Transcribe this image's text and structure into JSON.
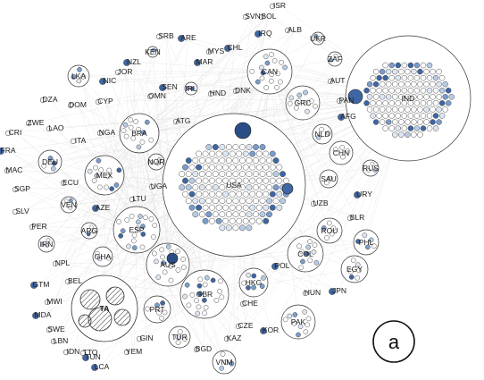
{
  "panel_label": "a",
  "colors": {
    "node_white": "#ffffff",
    "node_pale": "#dde7f3",
    "node_light": "#b6cbe4",
    "node_mid": "#7a9ccb",
    "node_dark": "#3e66a3",
    "node_darkest": "#2a4d85",
    "stroke": "#333333",
    "edge": "#e2e2e2"
  },
  "nodes": [
    {
      "label": "SVN"
    },
    {
      "label": "BOL"
    },
    {
      "label": "ISR"
    },
    {
      "label": "IRQ"
    },
    {
      "label": "ALB"
    },
    {
      "label": "SRB"
    },
    {
      "label": "ARE"
    },
    {
      "label": "UKR"
    },
    {
      "label": "KEN"
    },
    {
      "label": "MYS"
    },
    {
      "label": "CHL"
    },
    {
      "label": "NZL"
    },
    {
      "label": "MAR"
    },
    {
      "label": "ZAF"
    },
    {
      "label": "CAN"
    },
    {
      "label": "AUT"
    },
    {
      "label": "LKA"
    },
    {
      "label": "NIC"
    },
    {
      "label": "JOR"
    },
    {
      "label": "PAN"
    },
    {
      "label": "DZA"
    },
    {
      "label": "SEN"
    },
    {
      "label": "IRL"
    },
    {
      "label": "HND"
    },
    {
      "label": "DNK"
    },
    {
      "label": "OMN"
    },
    {
      "label": "DOM"
    },
    {
      "label": "CYP"
    },
    {
      "label": "GRC"
    },
    {
      "label": "AFG"
    },
    {
      "label": "IND"
    },
    {
      "label": "ZWE"
    },
    {
      "label": "LAO"
    },
    {
      "label": "CRI"
    },
    {
      "label": "BRA"
    },
    {
      "label": "ATG"
    },
    {
      "label": "NGA"
    },
    {
      "label": "NLD"
    },
    {
      "label": "ITA"
    },
    {
      "label": "FRA"
    },
    {
      "label": "CHN"
    },
    {
      "label": "DEU"
    },
    {
      "label": "NOR"
    },
    {
      "label": "MAC"
    },
    {
      "label": "MEX"
    },
    {
      "label": "RUS"
    },
    {
      "label": "USA"
    },
    {
      "label": "SAU"
    },
    {
      "label": "ECU"
    },
    {
      "label": "SGP"
    },
    {
      "label": "UGA"
    },
    {
      "label": "URY"
    },
    {
      "label": "LTU"
    },
    {
      "label": "UZB"
    },
    {
      "label": "SLV"
    },
    {
      "label": "VEN"
    },
    {
      "label": "AZE"
    },
    {
      "label": "BLR"
    },
    {
      "label": "PER"
    },
    {
      "label": "ARG"
    },
    {
      "label": "ESP"
    },
    {
      "label": "ROU"
    },
    {
      "label": "IRN"
    },
    {
      "label": "PHL"
    },
    {
      "label": "GHA"
    },
    {
      "label": "COL"
    },
    {
      "label": "NPL"
    },
    {
      "label": "AUS"
    },
    {
      "label": "EGY"
    },
    {
      "label": "POL"
    },
    {
      "label": "BEL"
    },
    {
      "label": "HKG"
    },
    {
      "label": "GTM"
    },
    {
      "label": "GBR"
    },
    {
      "label": "JPN"
    },
    {
      "label": "HUN"
    },
    {
      "label": "MWI"
    },
    {
      "label": "TA"
    },
    {
      "label": "CHE"
    },
    {
      "label": "PRT"
    },
    {
      "label": "MDA"
    },
    {
      "label": "PAK"
    },
    {
      "label": "SWE"
    },
    {
      "label": "CZE"
    },
    {
      "label": "KOR"
    },
    {
      "label": "LBN"
    },
    {
      "label": "GIN"
    },
    {
      "label": "TUR"
    },
    {
      "label": "IDN"
    },
    {
      "label": "TTO"
    },
    {
      "label": "YEM"
    },
    {
      "label": "KAZ"
    },
    {
      "label": "BGD"
    },
    {
      "label": "TUN"
    },
    {
      "label": "LCA"
    },
    {
      "label": "VNM"
    }
  ]
}
